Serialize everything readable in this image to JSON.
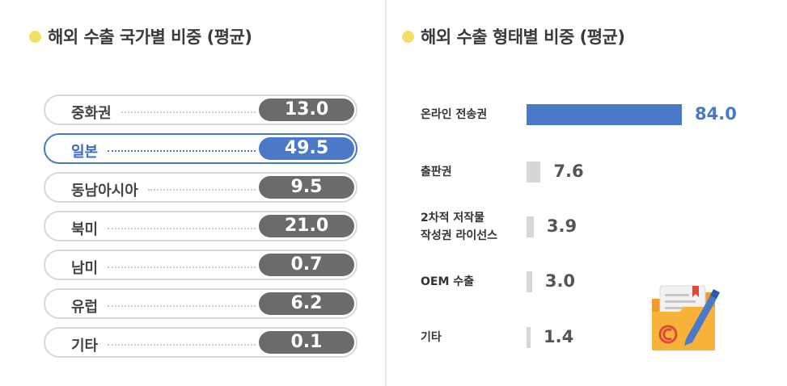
{
  "left_panel": {
    "title": "해외 수출 국가별 비중 (평균)"
  },
  "right_panel": {
    "title": "해외 수출 형태별 비중 (평균)"
  },
  "chart_data": [
    {
      "type": "table",
      "title": "해외 수출 국가별 비중 (평균)",
      "categories": [
        "중화권",
        "일본",
        "동남아시아",
        "북미",
        "남미",
        "유럽",
        "기타"
      ],
      "values": [
        "13.0",
        "49.5",
        "9.5",
        "21.0",
        "0.7",
        "6.2",
        "0.1"
      ],
      "highlighted": "일본",
      "colors": {
        "default": "#6b6b6b",
        "highlight": "#4a79c8"
      }
    },
    {
      "type": "bar",
      "orientation": "horizontal",
      "title": "해외 수출 형태별 비중 (평균)",
      "categories": [
        "온라인 전송권",
        "출판권",
        "2차적 저작물\n작성권 라이선스",
        "OEM 수출",
        "기타"
      ],
      "values": [
        84.0,
        7.6,
        3.9,
        3.0,
        1.4
      ],
      "value_labels": [
        "84.0",
        "7.6",
        "3.9",
        "3.0",
        "1.4"
      ],
      "highlighted": "온라인 전송권",
      "colors": {
        "default": "#d6d6d6",
        "highlight": "#4a79c8"
      }
    }
  ],
  "icons": {
    "decoration": "copyright-folder-icon"
  }
}
